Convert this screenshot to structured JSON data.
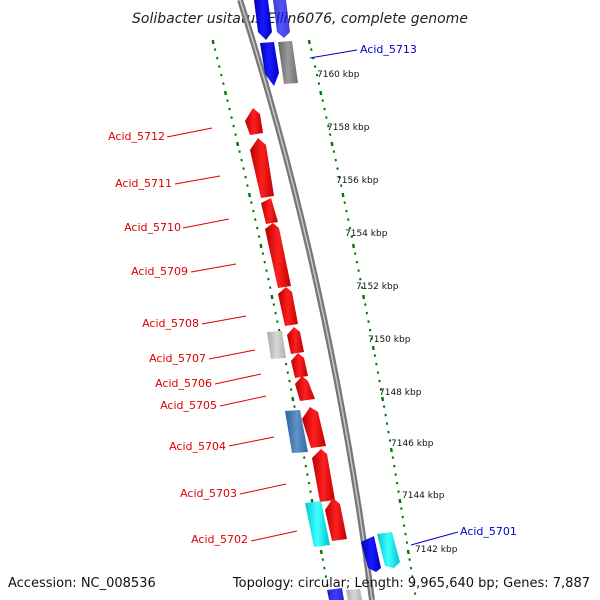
{
  "title": "Solibacter usitatus Ellin6076, complete genome",
  "footer": {
    "accession": "Accession: NC_008536",
    "summary": "Topology: circular; Length: 9,965,640 bp; Genes: 7,887"
  },
  "colors": {
    "reverse_strand_label": "#dd0000",
    "forward_strand_label": "#0000cc",
    "red_gene": "#ee0000",
    "blue_gene": "#0000ff",
    "gray_gene": "#888888",
    "cyan_gene": "#00e5ee",
    "steelblue_gene": "#4a7fb5",
    "light_gray_gene": "#c0c0c0",
    "tick_green": "#007700",
    "backbone": "#777777"
  },
  "gene_labels": [
    "Acid_5713",
    "Acid_5712",
    "Acid_5711",
    "Acid_5710",
    "Acid_5709",
    "Acid_5708",
    "Acid_5707",
    "Acid_5706",
    "Acid_5705",
    "Acid_5704",
    "Acid_5703",
    "Acid_5702",
    "Acid_5701"
  ],
  "kbp_labels": [
    "7160 kbp",
    "7158 kbp",
    "7156 kbp",
    "7154 kbp",
    "7152 kbp",
    "7150 kbp",
    "7148 kbp",
    "7146 kbp",
    "7144 kbp",
    "7142 kbp"
  ]
}
